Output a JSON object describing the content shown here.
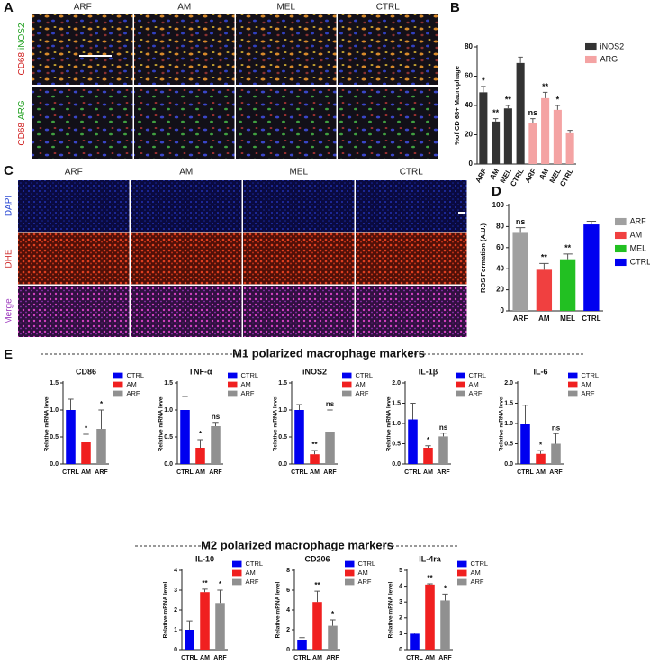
{
  "figure": {
    "panel_labels": [
      "A",
      "B",
      "C",
      "D",
      "E"
    ],
    "a": {
      "columns": [
        "ARF",
        "AM",
        "MEL",
        "CTRL"
      ],
      "rows": [
        [
          "CD68",
          "iNOS2"
        ],
        [
          "CD68",
          "ARG"
        ]
      ]
    },
    "c": {
      "columns": [
        "ARF",
        "AM",
        "MEL",
        "CTRL"
      ],
      "rows": [
        "DAPI",
        "DHE",
        "Merge"
      ]
    },
    "e": {
      "headings": [
        "M1 polarized macrophage markers",
        "M2 polarized macrophage markers"
      ]
    }
  },
  "chart_data": [
    {
      "type": "bar",
      "ylabel": "%of CD 68+ Macrophage",
      "categories": [
        "ARF",
        "AM",
        "MEL",
        "CTRL",
        "ARF",
        "AM",
        "MEL",
        "CTRL"
      ],
      "series": [
        {
          "name": "iNOS2",
          "color": "#333333",
          "values": [
            49,
            29,
            38,
            69,
            null,
            null,
            null,
            null
          ],
          "errors": [
            4,
            2,
            2,
            4,
            null,
            null,
            null,
            null
          ],
          "annotations": [
            "*",
            "**",
            "**",
            null,
            null,
            null,
            null,
            null
          ]
        },
        {
          "name": "ARG",
          "color": "#f4a3a3",
          "values": [
            null,
            null,
            null,
            null,
            28,
            45,
            37,
            21
          ],
          "errors": [
            null,
            null,
            null,
            null,
            3,
            4,
            3,
            2
          ],
          "annotations": [
            null,
            null,
            null,
            null,
            "ns",
            "**",
            "*",
            null
          ]
        }
      ],
      "ylim": [
        0,
        80
      ],
      "yticks": [
        0,
        20,
        40,
        60,
        80
      ],
      "legend": "upper right"
    },
    {
      "type": "bar",
      "ylabel": "ROS Formation (A.U.)",
      "categories": [
        "ARF",
        "AM",
        "MEL",
        "CTRL"
      ],
      "values": [
        74,
        39,
        49,
        82
      ],
      "errors": [
        5,
        6,
        5,
        3
      ],
      "annotations": [
        "ns",
        "**",
        "**",
        null
      ],
      "colors": [
        "#a0a0a0",
        "#f04040",
        "#22c022",
        "#0000f0"
      ],
      "ylim": [
        0,
        100
      ],
      "yticks": [
        0,
        20,
        40,
        60,
        80,
        100
      ],
      "legend": "upper right"
    },
    {
      "type": "bar",
      "title": "CD86",
      "ylabel": "Relative mRNA level",
      "categories": [
        "CTRL",
        "AM",
        "ARF"
      ],
      "values": [
        1.0,
        0.4,
        0.65
      ],
      "errors": [
        0.2,
        0.15,
        0.35
      ],
      "annotations": [
        null,
        "*",
        "*"
      ],
      "colors": [
        "#0000f0",
        "#f02020",
        "#909090"
      ],
      "ylim": [
        0,
        1.5
      ],
      "yticks": [
        {
          "value": 0,
          "label": "0.0"
        },
        0.5,
        {
          "value": 1,
          "label": "1.0"
        },
        1.5
      ],
      "legend": "right"
    },
    {
      "type": "bar",
      "title": "TNF-α",
      "ylabel": "Relative mRNA level",
      "categories": [
        "CTRL",
        "AM",
        "ARF"
      ],
      "values": [
        1.0,
        0.3,
        0.7
      ],
      "errors": [
        0.25,
        0.15,
        0.07
      ],
      "annotations": [
        null,
        "*",
        "ns"
      ],
      "colors": [
        "#0000f0",
        "#f02020",
        "#909090"
      ],
      "ylim": [
        0,
        1.5
      ],
      "yticks": [
        {
          "value": 0,
          "label": "0.0"
        },
        0.5,
        {
          "value": 1,
          "label": "1.0"
        },
        1.5
      ],
      "legend": "right"
    },
    {
      "type": "bar",
      "title": "iNOS2",
      "ylabel": "Relative mRNA level",
      "categories": [
        "CTRL",
        "AM",
        "ARF"
      ],
      "values": [
        1.0,
        0.18,
        0.6
      ],
      "errors": [
        0.1,
        0.07,
        0.4
      ],
      "annotations": [
        null,
        "**",
        "ns"
      ],
      "colors": [
        "#0000f0",
        "#f02020",
        "#909090"
      ],
      "ylim": [
        0,
        1.5
      ],
      "yticks": [
        {
          "value": 0,
          "label": "0.0"
        },
        0.5,
        {
          "value": 1,
          "label": "1.0"
        },
        1.5
      ],
      "legend": "right"
    },
    {
      "type": "bar",
      "title": "IL-1β",
      "ylabel": "Relative mRNA level",
      "categories": [
        "CTRL",
        "AM",
        "ARF"
      ],
      "values": [
        1.1,
        0.4,
        0.68
      ],
      "errors": [
        0.4,
        0.05,
        0.08
      ],
      "annotations": [
        null,
        "*",
        "ns"
      ],
      "colors": [
        "#0000f0",
        "#f02020",
        "#909090"
      ],
      "ylim": [
        0,
        2
      ],
      "yticks": [
        {
          "value": 0,
          "label": "0.0"
        },
        0.5,
        {
          "value": 1,
          "label": "1.0"
        },
        1.5,
        {
          "value": 2,
          "label": "2.0"
        }
      ],
      "legend": "right"
    },
    {
      "type": "bar",
      "title": "IL-6",
      "ylabel": "Relative mRNA level",
      "categories": [
        "CTRL",
        "AM",
        "ARF"
      ],
      "values": [
        1.0,
        0.25,
        0.5
      ],
      "errors": [
        0.45,
        0.08,
        0.25
      ],
      "annotations": [
        null,
        "*",
        "ns"
      ],
      "colors": [
        "#0000f0",
        "#f02020",
        "#909090"
      ],
      "ylim": [
        0,
        2
      ],
      "yticks": [
        {
          "value": 0,
          "label": "0.0"
        },
        0.5,
        {
          "value": 1,
          "label": "1.0"
        },
        1.5,
        {
          "value": 2,
          "label": "2.0"
        }
      ],
      "legend": "right"
    },
    {
      "type": "bar",
      "title": "IL-10",
      "ylabel": "Relative mRNA level",
      "categories": [
        "CTRL",
        "AM",
        "ARF"
      ],
      "values": [
        1.0,
        2.9,
        2.35
      ],
      "errors": [
        0.45,
        0.15,
        0.65
      ],
      "annotations": [
        null,
        "**",
        "*"
      ],
      "colors": [
        "#0000f0",
        "#f02020",
        "#909090"
      ],
      "ylim": [
        0,
        4
      ],
      "yticks": [
        0,
        1,
        2,
        3,
        4
      ],
      "legend": "right"
    },
    {
      "type": "bar",
      "title": "CD206",
      "ylabel": "Relative mRNA level",
      "categories": [
        "CTRL",
        "AM",
        "ARF"
      ],
      "values": [
        1.0,
        4.8,
        2.4
      ],
      "errors": [
        0.2,
        1.1,
        0.6
      ],
      "annotations": [
        null,
        "**",
        "*"
      ],
      "colors": [
        "#0000f0",
        "#f02020",
        "#909090"
      ],
      "ylim": [
        0,
        8
      ],
      "yticks": [
        0,
        2,
        4,
        6,
        8
      ],
      "legend": "right"
    },
    {
      "type": "bar",
      "title": "IL-4ra",
      "ylabel": "Relative mRNA level",
      "categories": [
        "CTRL",
        "AM",
        "ARF"
      ],
      "values": [
        1.0,
        4.1,
        3.1
      ],
      "errors": [
        0.05,
        0.05,
        0.4
      ],
      "annotations": [
        null,
        "**",
        "*"
      ],
      "colors": [
        "#0000f0",
        "#f02020",
        "#909090"
      ],
      "ylim": [
        0,
        5
      ],
      "yticks": [
        0,
        1,
        2,
        3,
        4,
        5
      ],
      "legend": "right"
    }
  ]
}
